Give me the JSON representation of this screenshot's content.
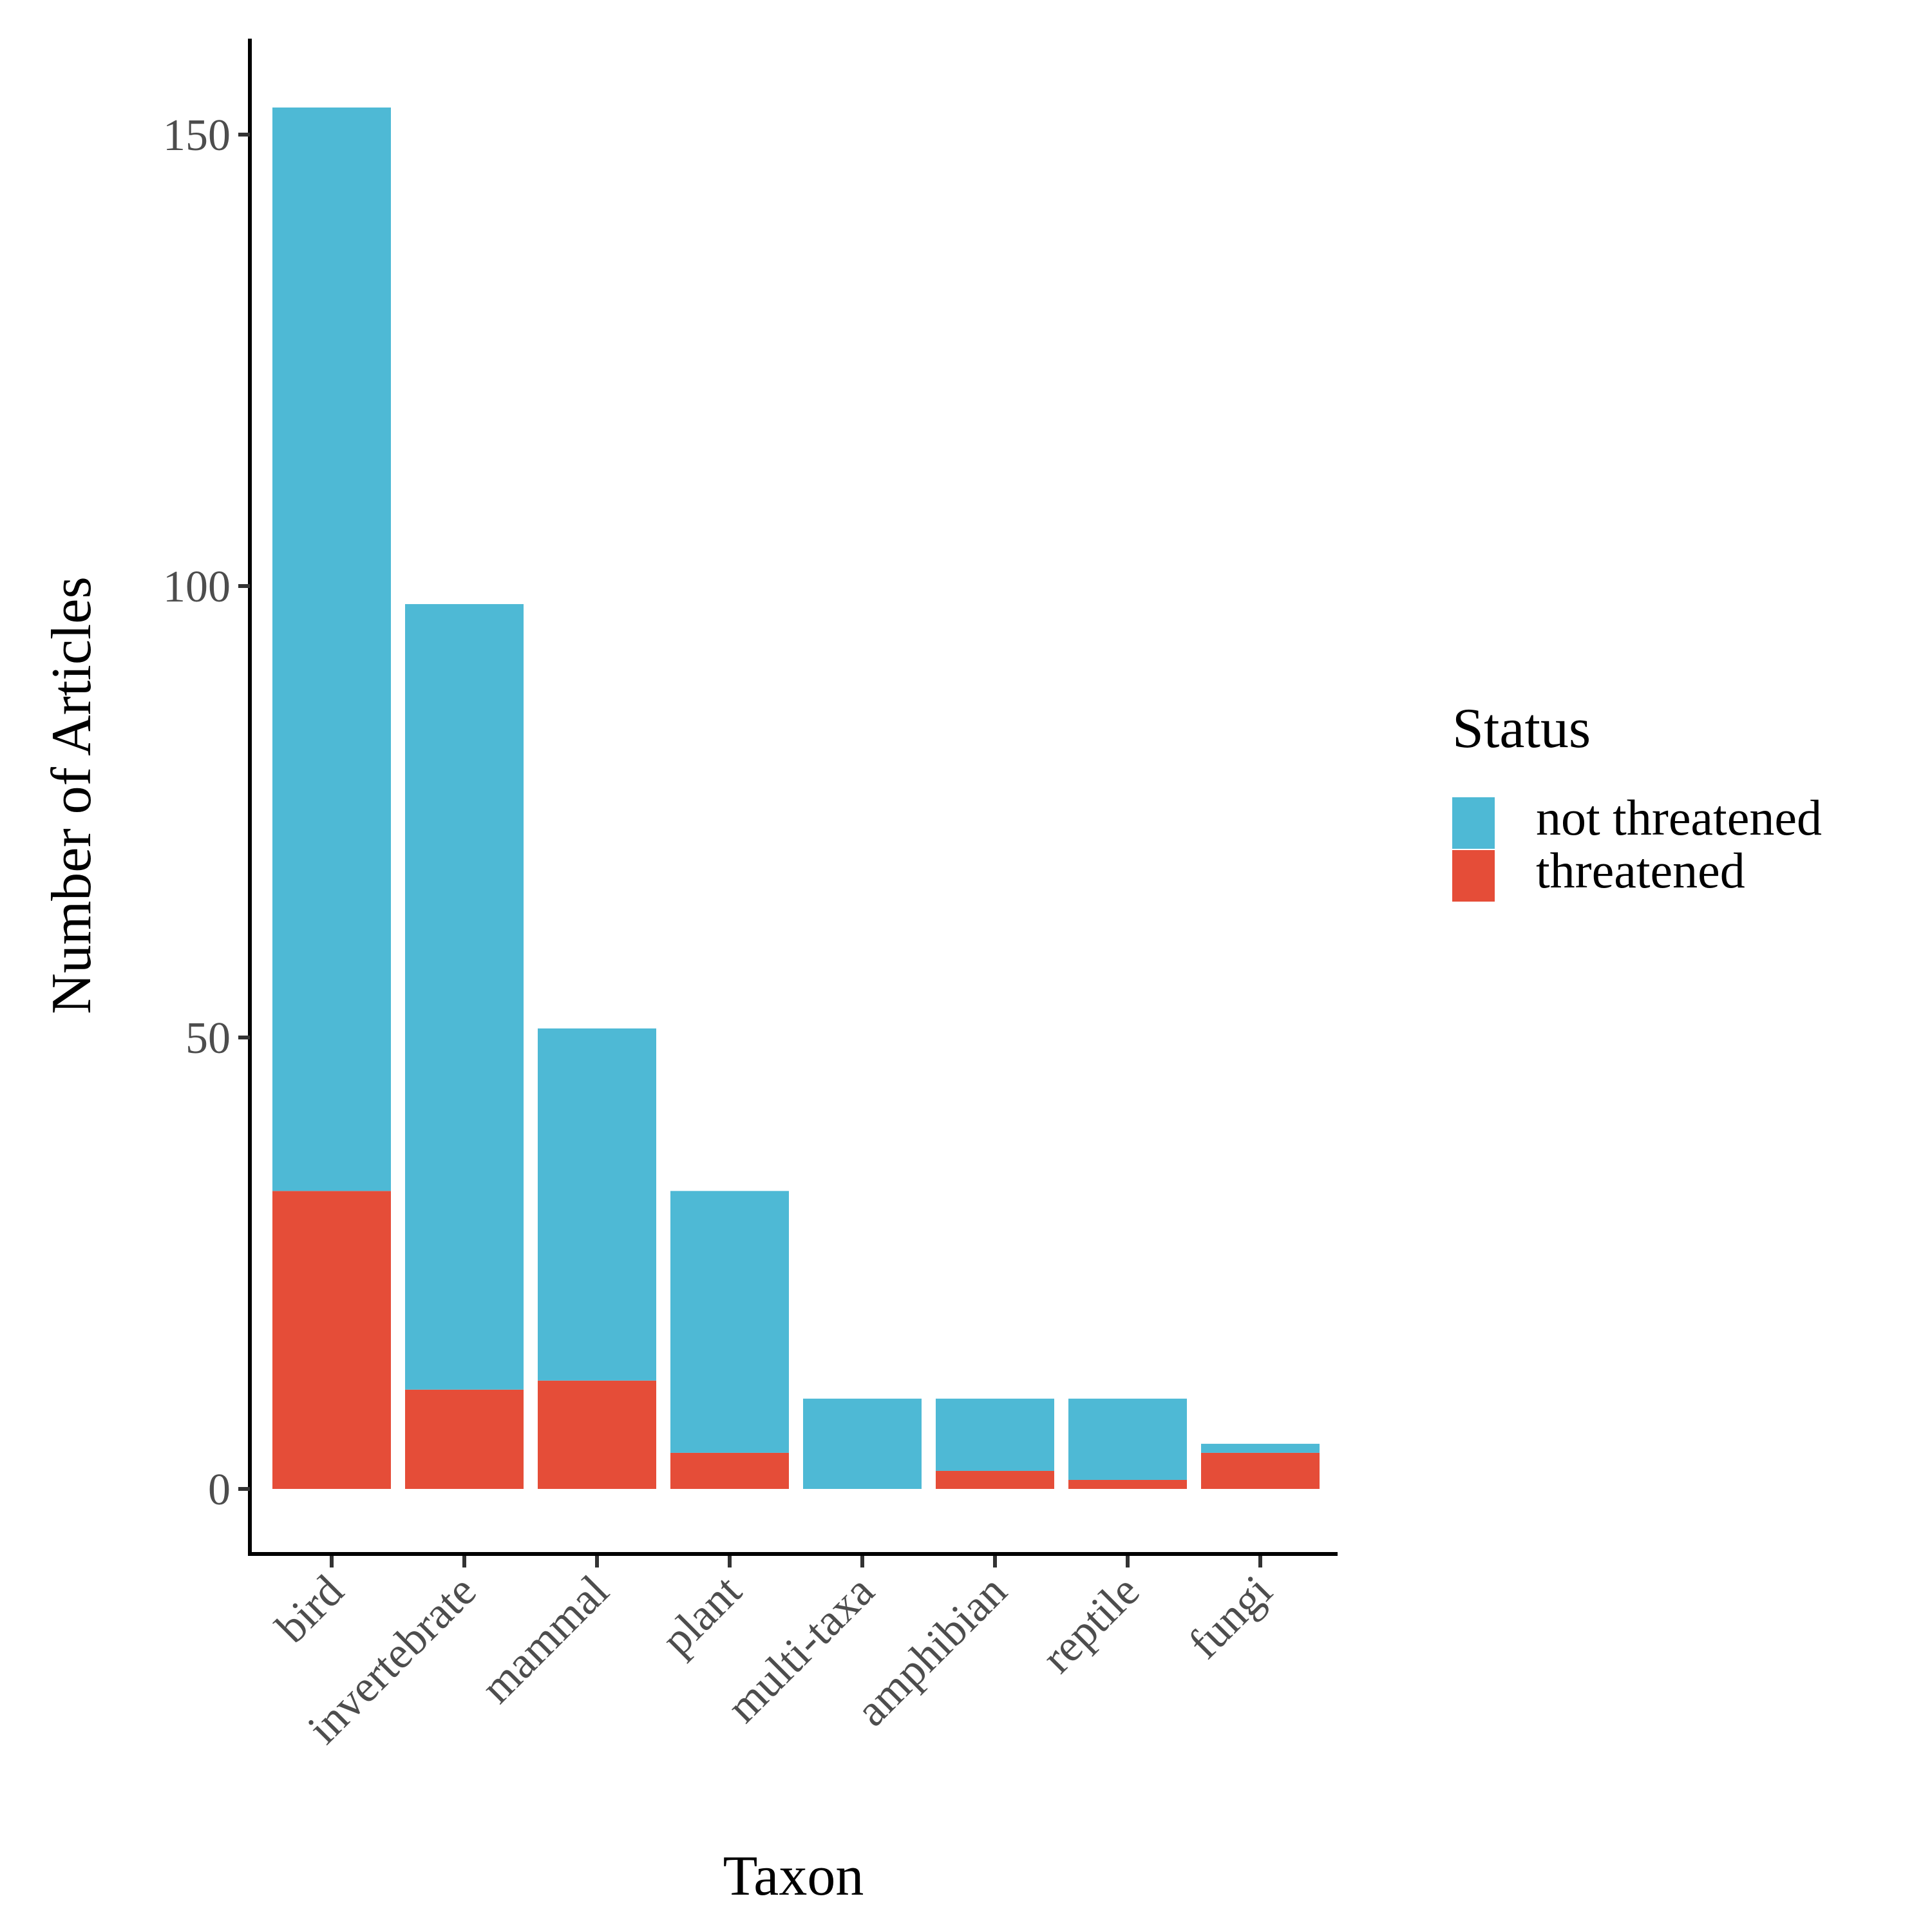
{
  "chart_data": {
    "type": "bar",
    "stacked": true,
    "title": "",
    "xlabel": "Taxon",
    "ylabel": "Number of Articles",
    "ylim": [
      -7.5,
      160
    ],
    "yticks": [
      0,
      50,
      100,
      150
    ],
    "grid": false,
    "legend_placement": "right",
    "legend_title": "Status",
    "categories": [
      "bird",
      "invertebrate",
      "mammal",
      "plant",
      "multi-taxa",
      "amphibian",
      "reptile",
      "fungi"
    ],
    "series": [
      {
        "name": "not threatened",
        "color": "#4eb9d5",
        "values": [
          120,
          87,
          39,
          29,
          10,
          8,
          9,
          1
        ]
      },
      {
        "name": "threatened",
        "color": "#e54d38",
        "values": [
          33,
          11,
          12,
          4,
          0,
          2,
          1,
          4
        ]
      }
    ]
  }
}
